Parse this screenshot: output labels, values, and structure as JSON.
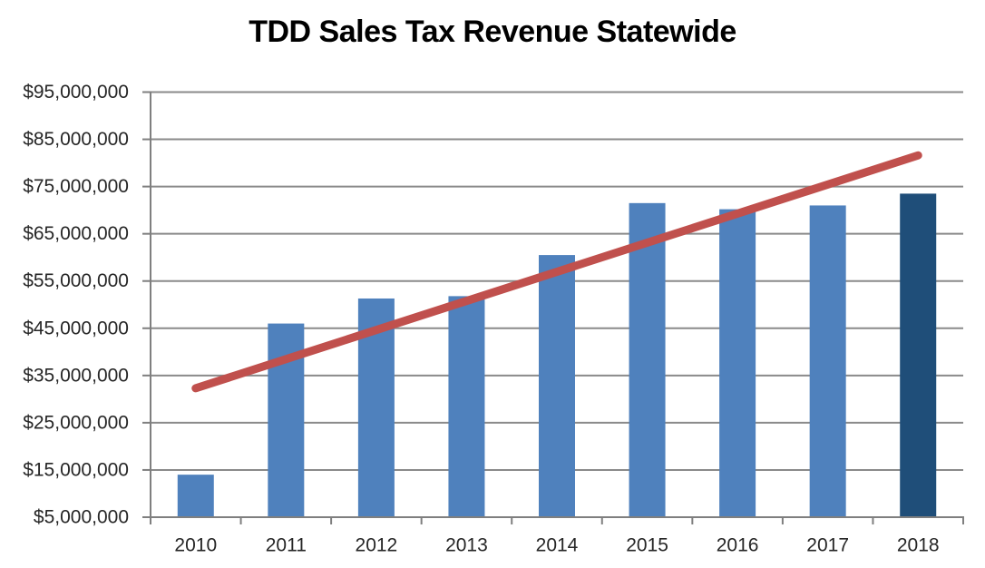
{
  "chart_data": {
    "type": "bar",
    "title": "TDD Sales Tax Revenue Statewide",
    "categories": [
      "2010",
      "2011",
      "2012",
      "2013",
      "2014",
      "2015",
      "2016",
      "2017",
      "2018"
    ],
    "series": [
      {
        "name": "TDD Sales Tax Revenue",
        "values": [
          14000000,
          46000000,
          51300000,
          51800000,
          60500000,
          71500000,
          70200000,
          71000000,
          73500000
        ]
      }
    ],
    "highlight": {
      "category": "2018",
      "index": 8
    },
    "trendline": {
      "type": "linear",
      "start_category": "2010",
      "end_category": "2018",
      "start_value": 32300000,
      "end_value": 81600000
    },
    "y_axis": {
      "min": 5000000,
      "max": 95000000,
      "step": 10000000,
      "tick_labels": [
        "$95,000,000",
        "$85,000,000",
        "$75,000,000",
        "$65,000,000",
        "$55,000,000",
        "$45,000,000",
        "$35,000,000",
        "$25,000,000",
        "$15,000,000",
        "$5,000,000"
      ]
    },
    "x_axis": {
      "tick_labels": [
        "2010",
        "2011",
        "2012",
        "2013",
        "2014",
        "2015",
        "2016",
        "2017",
        "2018"
      ]
    },
    "legend": "none",
    "grid": "horizontal",
    "ylim": [
      5000000,
      95000000
    ],
    "colors": {
      "bar": "#4F81BD",
      "bar_highlight": "#1F4E79",
      "trendline": "#C0504D",
      "gridline": "#8A8A8A",
      "axis": "#7F7F7F",
      "label_text": "#262626",
      "title_text": "#000000"
    }
  }
}
